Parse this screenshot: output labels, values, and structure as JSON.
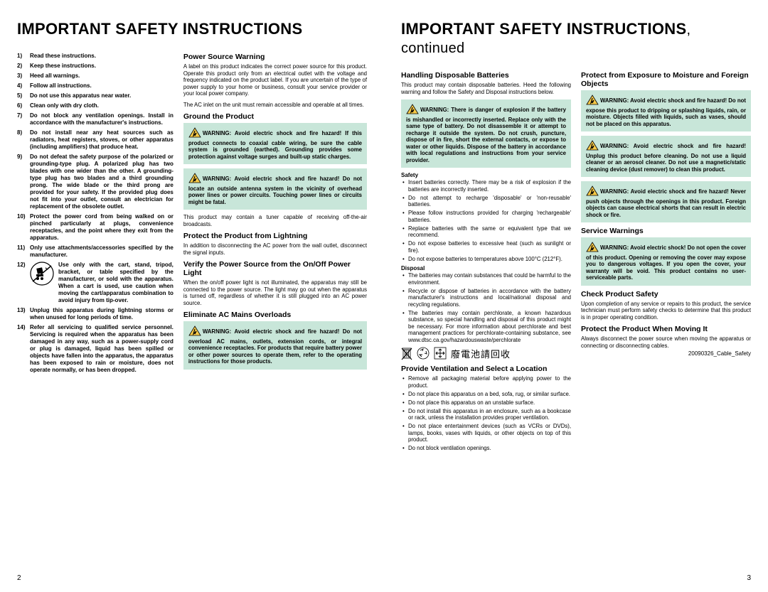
{
  "page_left": {
    "title": "IMPORTANT SAFETY INSTRUCTIONS",
    "number": "2",
    "numbered_items": [
      "Read these instructions.",
      "Keep these instructions.",
      "Heed all warnings.",
      "Follow all instructions.",
      "Do not use this apparatus near water.",
      "Clean only with dry cloth.",
      "Do not block any ventilation openings. Install in accordance with the manufacturer's instructions.",
      "Do not install near any heat sources such as radiators, heat registers, stoves, or other apparatus (including amplifiers) that produce heat.",
      "Do not defeat the safety purpose of the polarized or grounding-type plug. A polarized plug has two blades with one wider than the other. A grounding-type plug has two blades and a third grounding prong. The wide blade or the third prong are provided for your safety. If the provided plug does not fit into your outlet, consult an electrician for replacement of the obsolete outlet.",
      "Protect the power cord from being walked on or pinched particularly at plugs, convenience receptacles, and the point where they exit from the apparatus.",
      "Only use attachments/accessories specified by the manufacturer.",
      "Use only with the cart, stand, tripod, bracket, or table specified by the manufacturer, or sold with the apparatus. When a cart is used, use caution when moving the cart/apparatus combination to avoid injury from tip-over.",
      "Unplug this apparatus during lightning storms or when unused for long periods of time.",
      "Refer all servicing to qualified service personnel. Servicing is required when the apparatus has been damaged in any way, such as a power-supply cord or plug is damaged, liquid has been spilled or objects have fallen into the apparatus, the apparatus has been exposed to rain or moisture, does not operate normally, or has been dropped."
    ]
  },
  "sections": {
    "power_source": {
      "title": "Power Source Warning",
      "body": "A label on this product indicates the correct power source for this product. Operate this product only from an electrical outlet with the voltage and frequency indicated on the product label. If you are uncertain of the type of power supply to your home or business, consult your service provider or your local power company.",
      "body2": "The AC inlet on the unit must remain accessible and operable at all times."
    },
    "ground": {
      "title": "Ground the Product",
      "warn": "WARNING: Avoid electric shock and fire hazard! If this product connects to coaxial cable wiring, be sure the cable system is grounded (earthed). Grounding provides some protection against voltage surges and built-up static charges.",
      "warn2": "WARNING: Avoid electric shock and fire hazard! Do not locate an outside antenna system in the vicinity of overhead power lines or power circuits. Touching power lines or circuits might be fatal.",
      "body": "This product may contain a tuner capable of receiving off-the-air broadcasts."
    },
    "lightning": {
      "title": "Protect the Product from Lightning",
      "body": "In addition to disconnecting the AC power from the wall outlet, disconnect the signal inputs."
    },
    "verify": {
      "title": "Verify the Power Source from the On/Off Power Light",
      "body": "When the on/off power light is not illuminated, the apparatus may still be connected to the power source. The light may go out when the apparatus is turned off, regardless of whether it is still plugged into an AC power source."
    },
    "overload": {
      "title": "Eliminate AC Mains Overloads",
      "warn": "WARNING: Avoid electric shock and fire hazard! Do not overload AC mains, outlets, extension cords, or integral convenience receptacles. For products that require battery power or other power sources to operate them, refer to the operating instructions for those products."
    }
  },
  "page_right": {
    "title": "IMPORTANT SAFETY INSTRUCTIONS",
    "title_cont": ", continued",
    "number": "3"
  },
  "batteries": {
    "title": "Handling Disposable Batteries",
    "body": "This product may contain disposable batteries. Heed the following warning and follow the Safety and Disposal instructions below.",
    "warn": "WARNING: There is danger of explosion if the battery is mishandled or incorrectly inserted. Replace only with the same type of battery. Do not disassemble it or attempt to recharge it outside the system. Do not crush, puncture, dispose of in fire, short the external contacts, or expose to water or other liquids. Dispose of the battery in accordance with local regulations and instructions from your service provider.",
    "safety_head": "Safety",
    "safety_items": [
      "Insert batteries correctly. There may be a risk of explosion if the batteries are incorrectly inserted.",
      "Do not attempt to recharge 'disposable' or 'non-reusable' batteries.",
      "Please follow instructions provided for charging 'rechargeable' batteries.",
      "Replace batteries with the same or equivalent type that we recommend.",
      "Do not expose batteries to excessive heat (such as sunlight or fire).",
      "Do not expose batteries to temperatures above 100°C (212°F)."
    ],
    "disposal_head": "Disposal",
    "disposal_items": [
      "The batteries may contain substances that could be harmful to the environment.",
      "Recycle or dispose of batteries in accordance with the battery manufacturer's instructions and local/national disposal and recycling regulations.",
      "The batteries may contain perchlorate, a known hazardous substance, so special handling and disposal of this product might be necessary. For more information about perchlorate and best management practices for perchlorate-containing substance, see www.dtsc.ca.gov/hazardouswaste/perchlorate"
    ],
    "cjk": "廢電池請回收"
  },
  "ventilation": {
    "title": "Provide Ventilation and Select a Location",
    "items": [
      "Remove all packaging material before applying power to the product.",
      "Do not place this apparatus on a bed, sofa, rug, or similar surface.",
      "Do not place this apparatus on an unstable surface.",
      "Do not install this apparatus in an enclosure, such as a bookcase or rack, unless the installation provides proper ventilation.",
      "Do not place entertainment devices (such as VCRs or DVDs), lamps, books, vases with liquids, or other objects on top of this product.",
      "Do not block ventilation openings."
    ]
  },
  "moisture": {
    "title": "Protect from Exposure to Moisture and Foreign Objects",
    "warn1": "WARNING: Avoid electric shock and fire hazard! Do not expose this product to dripping or splashing liquids, rain, or moisture. Objects filled with liquids, such as vases, should not be placed on this apparatus.",
    "warn2": "WARNING: Avoid electric shock and fire hazard! Unplug this product before cleaning. Do not use a liquid cleaner or an aerosol cleaner. Do not use a magnetic/static cleaning device (dust remover) to clean this product.",
    "warn3": "WARNING: Avoid electric shock and fire hazard! Never push objects through the openings in this product. Foreign objects can cause electrical shorts that can result in electric shock or fire."
  },
  "service": {
    "title": "Service Warnings",
    "warn": "WARNING: Avoid electric shock! Do not open the cover of this product. Opening or removing the cover may expose you to dangerous voltages. If you open the cover, your warranty will be void. This product contains no user-serviceable parts."
  },
  "check": {
    "title": "Check Product Safety",
    "body": "Upon completion of any service or repairs to this product, the service technician must perform safety checks to determine that this product is in proper operating condition."
  },
  "moving": {
    "title": "Protect the Product When Moving It",
    "body": "Always disconnect the power source when moving the apparatus or connecting or disconnecting cables.",
    "doccode": "20090326_Cable_Safety"
  }
}
